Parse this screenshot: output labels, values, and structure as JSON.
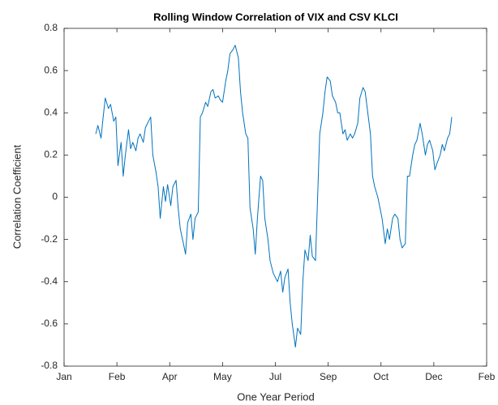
{
  "chart_data": {
    "type": "line",
    "title": "Rolling Window Correlation of VIX and CSV KLCI",
    "xlabel": "One Year Period",
    "ylabel": "Correlation Coefficient",
    "xlim": [
      0,
      400
    ],
    "xticks": [
      {
        "value": 0,
        "label": "Jan"
      },
      {
        "value": 50,
        "label": "Feb"
      },
      {
        "value": 100,
        "label": "Apr"
      },
      {
        "value": 150,
        "label": "May"
      },
      {
        "value": 200,
        "label": "Jul"
      },
      {
        "value": 250,
        "label": "Sep"
      },
      {
        "value": 300,
        "label": "Oct"
      },
      {
        "value": 350,
        "label": "Dec"
      },
      {
        "value": 400,
        "label": "Feb"
      }
    ],
    "ylim": [
      -0.8,
      0.8
    ],
    "yticks": [
      -0.8,
      -0.6,
      -0.4,
      -0.2,
      0,
      0.2,
      0.4,
      0.6,
      0.8
    ],
    "grid": false,
    "x": [
      30,
      32,
      35,
      37,
      39,
      42,
      44,
      47,
      49,
      51,
      54,
      56,
      58,
      61,
      63,
      65,
      68,
      70,
      72,
      75,
      77,
      80,
      82,
      84,
      87,
      89,
      91,
      94,
      96,
      98,
      101,
      103,
      106,
      108,
      110,
      113,
      115,
      117,
      120,
      122,
      124,
      127,
      129,
      131,
      134,
      136,
      139,
      141,
      143,
      146,
      148,
      150,
      153,
      155,
      157,
      160,
      162,
      165,
      167,
      169,
      172,
      174,
      176,
      179,
      181,
      183,
      186,
      188,
      190,
      193,
      195,
      198,
      200,
      202,
      205,
      207,
      209,
      212,
      214,
      216,
      219,
      221,
      224,
      226,
      228,
      231,
      233,
      235,
      238,
      240,
      242,
      245,
      247,
      249,
      252,
      254,
      257,
      259,
      261,
      264,
      266,
      268,
      271,
      273,
      275,
      278,
      280,
      283,
      285,
      287,
      290,
      292,
      294,
      297,
      299,
      301,
      304,
      306,
      308,
      311,
      313,
      316,
      318,
      320,
      323,
      325,
      327,
      330,
      332,
      334,
      337,
      339,
      342,
      344,
      346,
      349,
      351,
      353,
      356,
      358,
      360,
      363,
      365,
      367
    ],
    "series": [
      {
        "color": "#0072bd",
        "values": [
          0.3,
          0.34,
          0.28,
          0.38,
          0.47,
          0.42,
          0.44,
          0.36,
          0.38,
          0.15,
          0.26,
          0.1,
          0.2,
          0.32,
          0.23,
          0.26,
          0.22,
          0.28,
          0.3,
          0.26,
          0.33,
          0.36,
          0.38,
          0.2,
          0.12,
          0.05,
          -0.1,
          0.05,
          -0.02,
          0.06,
          -0.04,
          0.05,
          0.08,
          -0.05,
          -0.15,
          -0.22,
          -0.27,
          -0.12,
          -0.08,
          -0.2,
          -0.1,
          -0.07,
          0.38,
          0.4,
          0.45,
          0.43,
          0.5,
          0.51,
          0.47,
          0.48,
          0.46,
          0.45,
          0.55,
          0.6,
          0.68,
          0.7,
          0.72,
          0.66,
          0.5,
          0.4,
          0.3,
          0.28,
          -0.05,
          -0.15,
          -0.27,
          -0.1,
          0.1,
          0.08,
          -0.1,
          -0.2,
          -0.3,
          -0.36,
          -0.38,
          -0.4,
          -0.35,
          -0.45,
          -0.38,
          -0.34,
          -0.5,
          -0.6,
          -0.71,
          -0.62,
          -0.65,
          -0.4,
          -0.25,
          -0.3,
          -0.18,
          -0.28,
          -0.3,
          0,
          0.3,
          0.4,
          0.5,
          0.57,
          0.55,
          0.48,
          0.45,
          0.4,
          0.4,
          0.3,
          0.32,
          0.27,
          0.3,
          0.28,
          0.3,
          0.35,
          0.47,
          0.52,
          0.5,
          0.42,
          0.3,
          0.1,
          0.05,
          0,
          -0.05,
          -0.1,
          -0.22,
          -0.15,
          -0.2,
          -0.1,
          -0.08,
          -0.1,
          -0.2,
          -0.24,
          -0.22,
          0.1,
          0.1,
          0.2,
          0.25,
          0.27,
          0.35,
          0.3,
          0.2,
          0.25,
          0.27,
          0.22,
          0.13,
          0.16,
          0.2,
          0.25,
          0.22,
          0.28,
          0.3,
          0.38
        ]
      }
    ]
  }
}
